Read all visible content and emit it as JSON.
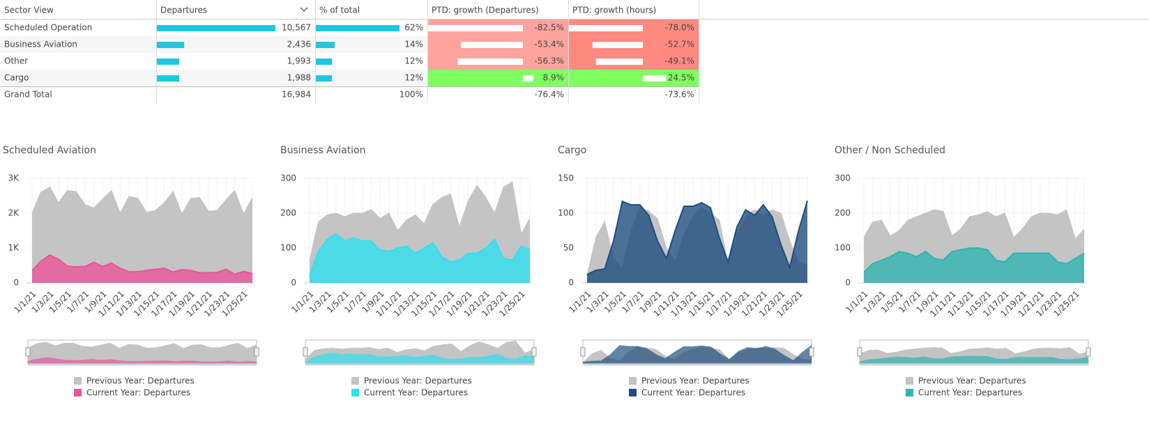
{
  "table": {
    "columns": [
      "Sector View",
      "Departures",
      "% of total",
      "PTD: growth (Departures)",
      "PTD: growth (hours)"
    ],
    "rows": [
      [
        "Scheduled Operation",
        {
          "value": 10567,
          "label": "10,567"
        },
        {
          "value": 62,
          "label": "62%"
        },
        {
          "value": -82.5,
          "label": "-82.5%"
        },
        {
          "value": -78.0,
          "label": "-78.0%"
        }
      ],
      [
        "Business Aviation",
        {
          "value": 2436,
          "label": "2,436"
        },
        {
          "value": 14,
          "label": "14%"
        },
        {
          "value": -53.4,
          "label": "-53.4%"
        },
        {
          "value": -52.7,
          "label": "-52.7%"
        }
      ],
      [
        "Other",
        {
          "value": 1993,
          "label": "1,993"
        },
        {
          "value": 12,
          "label": "12%"
        },
        {
          "value": -56.3,
          "label": "-56.3%"
        },
        {
          "value": -49.1,
          "label": "-49.1%"
        }
      ],
      [
        "Cargo",
        {
          "value": 1988,
          "label": "1,988"
        },
        {
          "value": 12,
          "label": "12%"
        },
        {
          "value": 8.9,
          "label": "8.9%"
        },
        {
          "value": 24.5,
          "label": "24.5%"
        }
      ]
    ],
    "total": [
      "Grand Total",
      {
        "value": 16984,
        "label": "16,984"
      },
      {
        "value": 100,
        "label": "100%"
      },
      {
        "value": -76.4,
        "label": "-76.4%"
      },
      {
        "value": -73.6,
        "label": "-73.6%"
      }
    ]
  },
  "chart_data": [
    {
      "type": "area",
      "title": "Scheduled Aviation",
      "categories": [
        "1/1/21",
        null,
        "1/3/21",
        null,
        "1/5/21",
        null,
        "1/7/21",
        null,
        "1/9/21",
        null,
        "1/11/21",
        null,
        "1/13/21",
        null,
        "1/15/21",
        null,
        "1/17/21",
        null,
        "1/19/21",
        null,
        "1/21/21",
        null,
        "1/23/21",
        null,
        "1/25/21",
        null
      ],
      "ylim": [
        0,
        3000
      ],
      "yticks": [
        0,
        {
          "value": 1000,
          "label": "1K"
        },
        {
          "value": 2000,
          "label": "2K"
        },
        {
          "value": 3000,
          "label": "3K"
        }
      ],
      "grid": true,
      "series": [
        {
          "name": "Previous Year: Departures",
          "color": "#c4c4c4",
          "values": [
            2000,
            2600,
            2750,
            2300,
            2650,
            2620,
            2250,
            2150,
            2400,
            2650,
            2000,
            2480,
            2430,
            2020,
            2080,
            2300,
            2620,
            1980,
            2420,
            2450,
            2060,
            2080,
            2380,
            2650,
            1980,
            2450
          ]
        },
        {
          "name": "Current Year: Departures",
          "color": "#e8559a",
          "values": [
            350,
            620,
            800,
            680,
            480,
            460,
            470,
            590,
            470,
            570,
            420,
            320,
            320,
            360,
            390,
            420,
            310,
            380,
            360,
            290,
            290,
            300,
            390,
            250,
            330,
            270
          ]
        }
      ]
    },
    {
      "type": "area",
      "title": "Business Aviation",
      "categories": [
        "1/1/21",
        null,
        "1/3/21",
        null,
        "1/5/21",
        null,
        "1/7/21",
        null,
        "1/9/21",
        null,
        "1/11/21",
        null,
        "1/13/21",
        null,
        "1/15/21",
        null,
        "1/17/21",
        null,
        "1/19/21",
        null,
        "1/21/21",
        null,
        "1/23/21",
        null,
        "1/25/21",
        null
      ],
      "ylim": [
        0,
        300
      ],
      "yticks": [
        0,
        100,
        200,
        300
      ],
      "grid": true,
      "series": [
        {
          "name": "Previous Year: Departures",
          "color": "#c4c4c4",
          "values": [
            65,
            175,
            195,
            200,
            190,
            200,
            200,
            210,
            185,
            200,
            150,
            180,
            195,
            170,
            225,
            245,
            255,
            160,
            235,
            280,
            245,
            200,
            275,
            290,
            140,
            185
          ]
        },
        {
          "name": "Current Year: Departures",
          "color": "#30e0f0",
          "values": [
            20,
            90,
            125,
            140,
            120,
            130,
            120,
            120,
            95,
            90,
            100,
            105,
            85,
            100,
            115,
            75,
            60,
            65,
            85,
            85,
            100,
            125,
            70,
            65,
            105,
            95
          ]
        }
      ]
    },
    {
      "type": "area",
      "title": "Cargo",
      "categories": [
        "1/1/21",
        null,
        "1/3/21",
        null,
        "1/5/21",
        null,
        "1/7/21",
        null,
        "1/9/21",
        null,
        "1/11/21",
        null,
        "1/13/21",
        null,
        "1/15/21",
        null,
        "1/17/21",
        null,
        "1/19/21",
        null,
        "1/21/21",
        null,
        "1/23/21",
        null,
        "1/25/21",
        null
      ],
      "ylim": [
        0,
        150
      ],
      "yticks": [
        0,
        50,
        100,
        150
      ],
      "grid": true,
      "series": [
        {
          "name": "Previous Year: Departures",
          "color": "#c4c4c4",
          "values": [
            10,
            65,
            88,
            35,
            20,
            75,
            108,
            103,
            92,
            50,
            30,
            70,
            95,
            108,
            100,
            90,
            28,
            70,
            95,
            105,
            98,
            105,
            100,
            60,
            30,
            25
          ]
        },
        {
          "name": "Current Year: Departures",
          "color": "#1f4e7e",
          "values": [
            12,
            18,
            20,
            60,
            117,
            112,
            112,
            97,
            60,
            35,
            75,
            110,
            110,
            115,
            108,
            65,
            30,
            80,
            105,
            97,
            112,
            95,
            55,
            22,
            75,
            118
          ]
        }
      ]
    },
    {
      "type": "area",
      "title": "Other / Non Scheduled",
      "categories": [
        "1/1/21",
        null,
        "1/3/21",
        null,
        "1/5/21",
        null,
        "1/7/21",
        null,
        "1/9/21",
        null,
        "1/11/21",
        null,
        "1/13/21",
        null,
        "1/15/21",
        null,
        "1/17/21",
        null,
        "1/19/21",
        null,
        "1/21/21",
        null,
        "1/23/21",
        null,
        "1/25/21",
        null
      ],
      "ylim": [
        0,
        300
      ],
      "yticks": [
        0,
        100,
        200,
        300
      ],
      "grid": true,
      "series": [
        {
          "name": "Previous Year: Departures",
          "color": "#c4c4c4",
          "values": [
            130,
            175,
            180,
            135,
            150,
            180,
            190,
            200,
            210,
            205,
            135,
            155,
            190,
            195,
            205,
            190,
            200,
            130,
            155,
            190,
            200,
            200,
            195,
            210,
            125,
            155
          ]
        },
        {
          "name": "Current Year: Departures",
          "color": "#2fb5b0",
          "values": [
            30,
            55,
            65,
            75,
            90,
            85,
            75,
            90,
            70,
            65,
            90,
            95,
            100,
            100,
            95,
            65,
            60,
            85,
            85,
            85,
            85,
            85,
            60,
            55,
            70,
            85
          ]
        }
      ]
    }
  ]
}
